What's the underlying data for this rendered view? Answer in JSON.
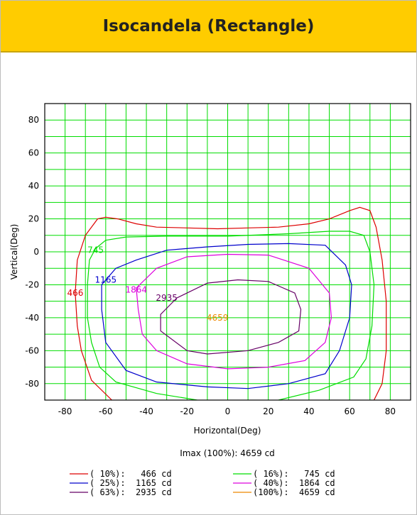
{
  "header": {
    "title": "Isocandela (Rectangle)"
  },
  "chart_data": {
    "type": "line",
    "title": "Isocandela (Rectangle)",
    "xlabel": "Horizontal(Deg)",
    "ylabel": "Vertical(Deg)",
    "xlim": [
      -90,
      90
    ],
    "ylim": [
      -90,
      90
    ],
    "xticks": [
      "-80",
      "-60",
      "-40",
      "-20",
      "0",
      "20",
      "40",
      "60",
      "80"
    ],
    "yticks": [
      "80",
      "60",
      "40",
      "20",
      "0",
      "-20",
      "-40",
      "-60",
      "-80"
    ],
    "grid": true,
    "imax_text": "Imax (100%): 4659 cd",
    "series": [
      {
        "name": "( 10%):   466 cd",
        "label": "466",
        "color": "#dd0000",
        "label_pos": [
          -75,
          -25
        ],
        "points": [
          [
            -57,
            -90
          ],
          [
            -67,
            -78
          ],
          [
            -72,
            -60
          ],
          [
            -74,
            -45
          ],
          [
            -75,
            -25
          ],
          [
            -74,
            -5
          ],
          [
            -70,
            10
          ],
          [
            -64,
            20
          ],
          [
            -60,
            21
          ],
          [
            -54,
            20
          ],
          [
            -45,
            17
          ],
          [
            -35,
            15
          ],
          [
            -20,
            14.5
          ],
          [
            -5,
            14
          ],
          [
            10,
            14.5
          ],
          [
            25,
            15
          ],
          [
            40,
            17
          ],
          [
            50,
            20
          ],
          [
            60,
            25
          ],
          [
            65,
            27
          ],
          [
            70,
            25
          ],
          [
            73,
            15
          ],
          [
            76,
            -5
          ],
          [
            78,
            -30
          ],
          [
            78,
            -60
          ],
          [
            76,
            -80
          ],
          [
            72,
            -90
          ]
        ]
      },
      {
        "name": "( 16%):   745 cd",
        "label": "745",
        "color": "#00dd00",
        "label_pos": [
          -65,
          1
        ],
        "points": [
          [
            -15,
            -90
          ],
          [
            -35,
            -86
          ],
          [
            -55,
            -79
          ],
          [
            -63,
            -70
          ],
          [
            -67,
            -55
          ],
          [
            -69,
            -40
          ],
          [
            -69,
            -20
          ],
          [
            -68,
            -5
          ],
          [
            -65,
            2
          ],
          [
            -60,
            7
          ],
          [
            -50,
            9
          ],
          [
            -30,
            9.5
          ],
          [
            0,
            9.5
          ],
          [
            30,
            11
          ],
          [
            50,
            12.5
          ],
          [
            60,
            12.5
          ],
          [
            67,
            10
          ],
          [
            70,
            0
          ],
          [
            72,
            -20
          ],
          [
            71,
            -45
          ],
          [
            68,
            -65
          ],
          [
            62,
            -76
          ],
          [
            45,
            -84
          ],
          [
            25,
            -90
          ]
        ]
      },
      {
        "name": "( 25%):  1165 cd",
        "label": "1165",
        "color": "#0000cc",
        "label_pos": [
          -60,
          -17
        ],
        "points": [
          [
            -62,
            -20
          ],
          [
            -62,
            -35
          ],
          [
            -60,
            -55
          ],
          [
            -50,
            -72
          ],
          [
            -35,
            -79
          ],
          [
            -10,
            -82
          ],
          [
            10,
            -83
          ],
          [
            30,
            -80
          ],
          [
            48,
            -74
          ],
          [
            55,
            -60
          ],
          [
            60,
            -40
          ],
          [
            61,
            -20
          ],
          [
            58,
            -8
          ],
          [
            48,
            4
          ],
          [
            30,
            5
          ],
          [
            10,
            4.5
          ],
          [
            -10,
            3
          ],
          [
            -30,
            1
          ],
          [
            -45,
            -5
          ],
          [
            -55,
            -10
          ]
        ]
      },
      {
        "name": "( 40%):  1864 cd",
        "label": "1864",
        "color": "#dd00dd",
        "label_pos": [
          -45,
          -23
        ],
        "points": [
          [
            -45,
            -22
          ],
          [
            -44,
            -35
          ],
          [
            -42,
            -50
          ],
          [
            -35,
            -60
          ],
          [
            -20,
            -68
          ],
          [
            0,
            -71
          ],
          [
            20,
            -70
          ],
          [
            38,
            -66
          ],
          [
            48,
            -55
          ],
          [
            51,
            -40
          ],
          [
            50,
            -25
          ],
          [
            40,
            -10
          ],
          [
            20,
            -2
          ],
          [
            0,
            -1.5
          ],
          [
            -20,
            -3
          ],
          [
            -35,
            -10
          ]
        ]
      },
      {
        "name": "( 63%):  2935 cd",
        "label": "2935",
        "color": "#660066",
        "label_pos": [
          -30,
          -28
        ],
        "points": [
          [
            -25,
            -28
          ],
          [
            -33,
            -38
          ],
          [
            -33,
            -48
          ],
          [
            -20,
            -60
          ],
          [
            -10,
            -62
          ],
          [
            10,
            -60
          ],
          [
            25,
            -55
          ],
          [
            35,
            -48
          ],
          [
            36,
            -35
          ],
          [
            33,
            -25
          ],
          [
            20,
            -18
          ],
          [
            5,
            -17
          ],
          [
            -10,
            -19
          ]
        ]
      },
      {
        "name": "(100%):  4659 cd",
        "label": "4659",
        "color": "#ee8800",
        "label_pos": [
          -5,
          -40
        ],
        "points": []
      }
    ]
  }
}
